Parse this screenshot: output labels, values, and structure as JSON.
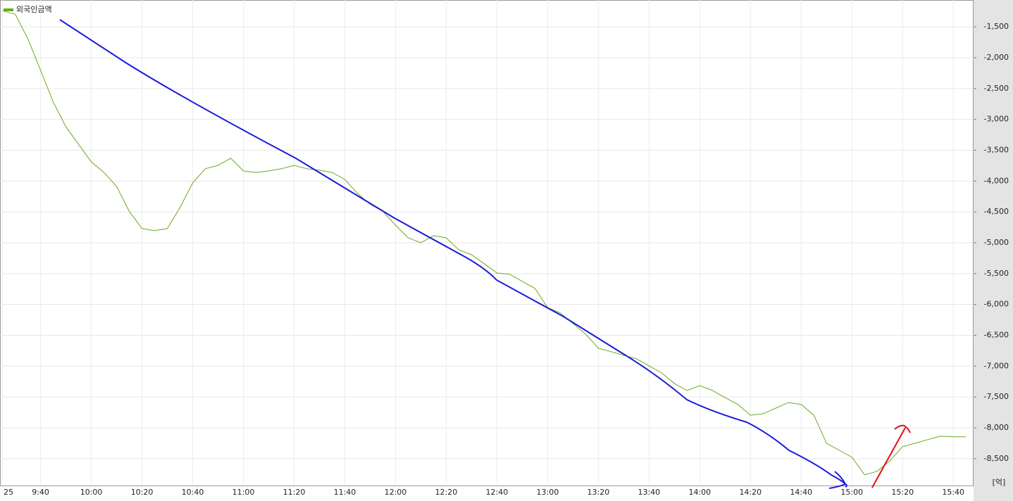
{
  "chart_data": {
    "type": "line",
    "x": [
      "9:25",
      "9:30",
      "9:35",
      "9:40",
      "9:45",
      "9:50",
      "9:55",
      "10:00",
      "10:05",
      "10:10",
      "10:15",
      "10:20",
      "10:25",
      "10:30",
      "10:35",
      "10:40",
      "10:45",
      "10:50",
      "10:55",
      "11:00",
      "11:05",
      "11:10",
      "11:15",
      "11:20",
      "11:25",
      "11:30",
      "11:35",
      "11:40",
      "11:45",
      "11:50",
      "11:55",
      "12:00",
      "12:05",
      "12:10",
      "12:15",
      "12:20",
      "12:25",
      "12:30",
      "12:35",
      "12:40",
      "12:45",
      "12:50",
      "12:55",
      "13:00",
      "13:05",
      "13:10",
      "13:15",
      "13:20",
      "13:25",
      "13:30",
      "13:35",
      "13:40",
      "13:45",
      "13:50",
      "13:55",
      "14:00",
      "14:05",
      "14:10",
      "14:15",
      "14:20",
      "14:25",
      "14:30",
      "14:35",
      "14:40",
      "14:45",
      "14:50",
      "14:55",
      "15:00",
      "15:05",
      "15:10",
      "15:15",
      "15:20",
      "15:25",
      "15:30",
      "15:35",
      "15:40",
      "15:45"
    ],
    "series": [
      {
        "name": "외국인금액",
        "color": "#6aaa1e",
        "values": [
          -1240,
          -1295,
          -1695,
          -2205,
          -2720,
          -3120,
          -3405,
          -3690,
          -3860,
          -4090,
          -4490,
          -4770,
          -4805,
          -4770,
          -4430,
          -4030,
          -3800,
          -3745,
          -3630,
          -3835,
          -3860,
          -3835,
          -3800,
          -3745,
          -3800,
          -3825,
          -3860,
          -3975,
          -4200,
          -4375,
          -4490,
          -4715,
          -4920,
          -5000,
          -4885,
          -4920,
          -5115,
          -5195,
          -5340,
          -5490,
          -5510,
          -5625,
          -5740,
          -6050,
          -6140,
          -6310,
          -6480,
          -6710,
          -6765,
          -6825,
          -6880,
          -6995,
          -7110,
          -7280,
          -7395,
          -7315,
          -7395,
          -7510,
          -7620,
          -7795,
          -7770,
          -7680,
          -7590,
          -7620,
          -7795,
          -8250,
          -8365,
          -8475,
          -8760,
          -8705,
          -8535,
          -8305,
          -8250,
          -8190,
          -8135,
          -8145,
          -8145
        ]
      }
    ],
    "xlim": [
      "9:24",
      "15:48"
    ],
    "xticks": [
      {
        "value": "9:25",
        "label": "25"
      },
      "9:40",
      "10:00",
      "10:20",
      "10:40",
      "11:00",
      "11:20",
      "11:40",
      "12:00",
      "12:20",
      "12:40",
      "13:00",
      "13:20",
      "13:40",
      "14:00",
      "14:20",
      "14:40",
      "15:00",
      "15:20",
      "15:40"
    ],
    "ylim": [
      -8935,
      -1065
    ],
    "yticks": [
      {
        "value": -1500,
        "label": "-1,500"
      },
      {
        "value": -2000,
        "label": "-2,000"
      },
      {
        "value": -2500,
        "label": "-2,500"
      },
      {
        "value": -3000,
        "label": "-3,000"
      },
      {
        "value": -3500,
        "label": "-3,500"
      },
      {
        "value": -4000,
        "label": "-4,000"
      },
      {
        "value": -4500,
        "label": "-4,500"
      },
      {
        "value": -5000,
        "label": "-5,000"
      },
      {
        "value": -5500,
        "label": "-5,500"
      },
      {
        "value": -6000,
        "label": "-6,000"
      },
      {
        "value": -6500,
        "label": "-6,500"
      },
      {
        "value": -7000,
        "label": "-7,000"
      },
      {
        "value": -7500,
        "label": "-7,500"
      },
      {
        "value": -8000,
        "label": "-8,000"
      },
      {
        "value": -8500,
        "label": "-8,500"
      }
    ],
    "y_unit": "[억]",
    "grid": true
  }
}
